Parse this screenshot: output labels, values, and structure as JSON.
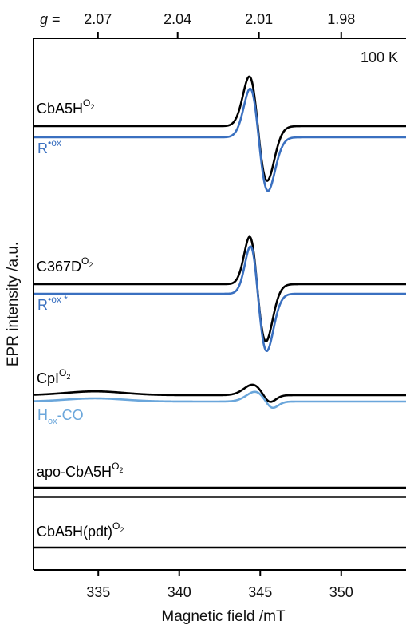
{
  "chart_data": {
    "type": "line",
    "xlabel": "Magnetic field /mT",
    "ylabel": "EPR intensity /a.u.",
    "temperature_label": "100 K",
    "x_ticks": [
      "335",
      "340",
      "345",
      "350"
    ],
    "x_tick_values": [
      335,
      340,
      345,
      350
    ],
    "xlim": [
      331.0,
      354.0
    ],
    "top_axis": {
      "prefix": "g =",
      "ticks": [
        "2.07",
        "2.04",
        "2.01",
        "1.98"
      ],
      "tick_field_values": [
        334.98,
        339.9,
        344.92,
        350.0
      ]
    },
    "series": [
      {
        "label_main": "CbA5H",
        "label_sup": "O",
        "label_sup_sub": "2",
        "color": "#000000",
        "baseline": 0.0,
        "amp": 1.0,
        "center": 344.85,
        "width": 0.55,
        "asym": 1.05,
        "shoulder": 0.0
      },
      {
        "label_main": "R",
        "label_sup": "•ox",
        "label_sup_sub": "",
        "color": "#3a70c0",
        "baseline": -0.15,
        "amp": 0.98,
        "center": 344.9,
        "width": 0.55,
        "asym": 1.05,
        "shoulder": 0.0
      },
      {
        "label_main": "C367D",
        "label_sup": "O",
        "label_sup_sub": "2",
        "color": "#000000",
        "baseline": 0.0,
        "amp": 1.0,
        "center": 344.8,
        "width": 0.5,
        "asym": 1.1,
        "shoulder": 0.0
      },
      {
        "label_main": "R",
        "label_sup": "•ox *",
        "label_sup_sub": "",
        "color": "#3a70c0",
        "baseline": 0.0,
        "amp": 1.0,
        "center": 344.85,
        "width": 0.5,
        "asym": 1.1,
        "shoulder": 0.0
      },
      {
        "label_main": "CpI",
        "label_sup": "O",
        "label_sup_sub": "2",
        "color": "#000000",
        "baseline": 0.0,
        "amp": 0.16,
        "center": 345.2,
        "width": 0.55,
        "asym": 0.8,
        "shoulder": 0.06
      },
      {
        "label_main": "H",
        "label_sub": "ox",
        "label_rest": "-CO",
        "color": "#6aa6db",
        "baseline": 0.0,
        "amp": 0.15,
        "center": 345.35,
        "width": 0.55,
        "asym": 0.8,
        "shoulder": 0.05
      },
      {
        "label_main": "apo-CbA5H",
        "label_sup": "O",
        "label_sup_sub": "2",
        "color": "#000000",
        "baseline": 0.0,
        "amp": 0.0,
        "center": 345.0,
        "width": 0.5,
        "asym": 1.0,
        "shoulder": 0.0
      },
      {
        "label_main": "CbA5H(pdt)",
        "label_sup": "O",
        "label_sup_sub": "2",
        "color": "#000000",
        "baseline": 0.0,
        "amp": 0.0,
        "center": 345.0,
        "width": 0.5,
        "asym": 1.0,
        "shoulder": 0.0
      }
    ],
    "grid": false,
    "legend": "none"
  }
}
